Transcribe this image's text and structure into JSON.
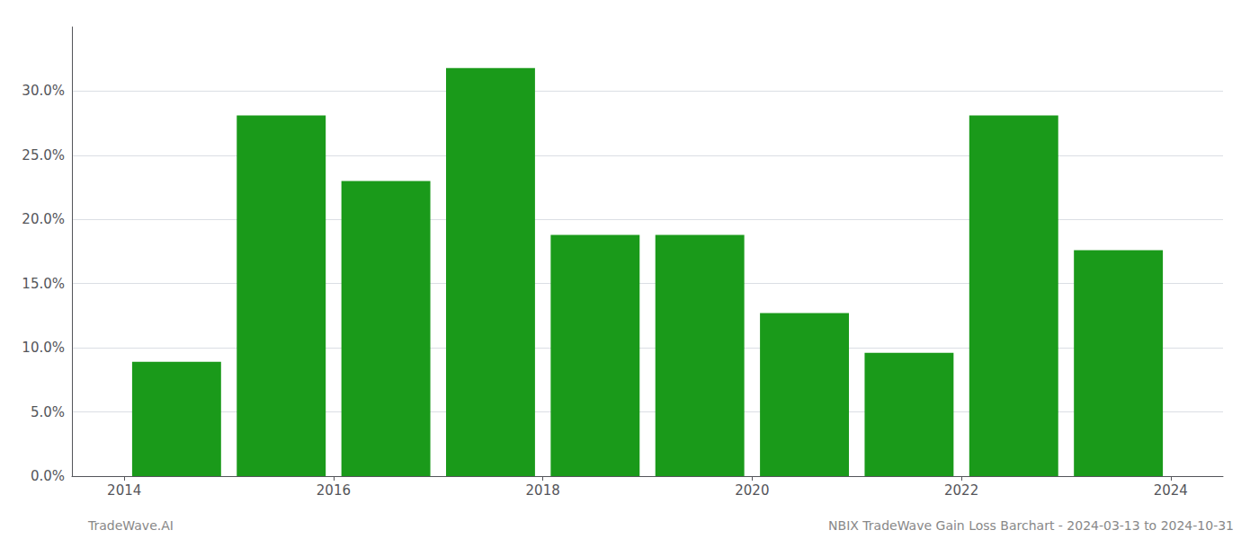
{
  "chart_data": {
    "type": "bar",
    "x": [
      2014.5,
      2015.5,
      2016.5,
      2017.5,
      2018.5,
      2019.5,
      2020.5,
      2021.5,
      2022.5,
      2023.5
    ],
    "values": [
      0.089,
      0.281,
      0.23,
      0.318,
      0.188,
      0.188,
      0.127,
      0.096,
      0.281,
      0.176
    ],
    "color": "#1a9a1a",
    "xlim": [
      2013.5,
      2024.5
    ],
    "xticks": [
      2014,
      2016,
      2018,
      2020,
      2022,
      2024
    ],
    "ylim": [
      0,
      0.35
    ],
    "yticks": [
      {
        "value": 0.0,
        "label": "0.0%"
      },
      {
        "value": 0.05,
        "label": "5.0%"
      },
      {
        "value": 0.1,
        "label": "10.0%"
      },
      {
        "value": 0.15,
        "label": "15.0%"
      },
      {
        "value": 0.2,
        "label": "20.0%"
      },
      {
        "value": 0.25,
        "label": "25.0%"
      },
      {
        "value": 0.3,
        "label": "30.0%"
      }
    ],
    "grid": true,
    "annotations": [
      "TradeWave.AI",
      "NBIX TradeWave Gain Loss Barchart - 2024-03-13 to 2024-10-31"
    ]
  }
}
